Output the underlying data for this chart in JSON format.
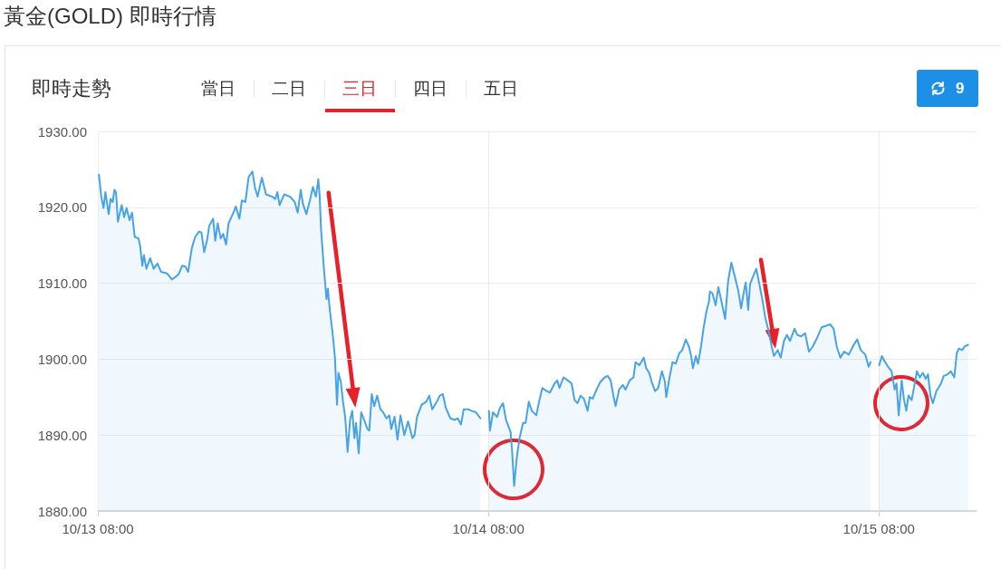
{
  "chart_data": {
    "type": "area",
    "title": "黃金(GOLD) 即時行情",
    "subtitle": "即時走勢",
    "annotations": [
      "當日",
      "二日",
      "三日",
      "四日",
      "五日",
      "9"
    ],
    "color": "#47a3e6",
    "marker": "none",
    "grid": true,
    "xlim": [
      "--10-13T08:00",
      "--10-15T14:00"
    ],
    "xticks": [
      {
        "value": "--10-13T08:00",
        "label": "10/13 08:00"
      },
      {
        "value": "--10-14T08:00",
        "label": "10/14 08:00"
      },
      {
        "value": "--10-15T08:00",
        "label": "10/15 08:00"
      }
    ],
    "ylim": [
      1880,
      1930
    ],
    "yticks": [
      {
        "value": 1880,
        "label": "1880.00"
      },
      {
        "value": 1890,
        "label": "1890.00"
      },
      {
        "value": 1900,
        "label": "1900.00"
      },
      {
        "value": 1910,
        "label": "1910.00"
      },
      {
        "value": 1920,
        "label": "1920.00"
      },
      {
        "value": 1930,
        "label": "1930.00"
      }
    ],
    "x": [
      "--10-13T08:04",
      "--10-13T08:13",
      "--10-13T08:21",
      "--10-13T08:28",
      "--10-13T08:40",
      "--10-13T08:47",
      "--10-13T08:55",
      "--10-13T09:01",
      "--10-13T09:07",
      "--10-13T09:14",
      "--10-13T09:28",
      "--10-13T09:37",
      "--10-13T09:46",
      "--10-13T09:57",
      "--10-13T10:06",
      "--10-13T10:16",
      "--10-13T10:30",
      "--10-13T10:36",
      "--10-13T10:44",
      "--10-13T10:50",
      "--10-13T10:59",
      "--10-13T11:13",
      "--10-13T11:26",
      "--10-13T11:40",
      "--10-13T11:53",
      "--10-13T12:15",
      "--10-13T12:33",
      "--10-13T12:49",
      "--10-13T12:58",
      "--10-13T13:11",
      "--10-13T13:23",
      "--10-13T13:33",
      "--10-13T13:47",
      "--10-13T13:59",
      "--10-13T14:13",
      "--10-13T14:22",
      "--10-13T14:32",
      "--10-13T14:43",
      "--10-13T14:51",
      "--10-13T15:05",
      "--10-13T15:13",
      "--10-13T15:22",
      "--10-13T15:33",
      "--10-13T15:42",
      "--10-13T15:53",
      "--10-13T16:02",
      "--10-13T16:20",
      "--10-13T16:29",
      "--10-13T16:42",
      "--10-13T16:51",
      "--10-13T17:04",
      "--10-13T17:16",
      "--10-13T17:30",
      "--10-13T17:39",
      "--10-13T17:49",
      "--10-13T18:05",
      "--10-13T18:20",
      "--10-13T18:43",
      "--10-13T18:54",
      "--10-13T19:02",
      "--10-13T19:10",
      "--10-13T19:27",
      "--10-13T19:49",
      "--10-13T20:06",
      "--10-13T20:17",
      "--10-13T20:28",
      "--10-13T20:36",
      "--10-13T20:49",
      "--10-13T21:02",
      "--10-13T21:13",
      "--10-13T21:24",
      "--10-13T21:33",
      "--10-13T21:38",
      "--10-13T21:43",
      "--10-13T21:52",
      "--10-13T22:03",
      "--10-13T22:08",
      "--10-13T22:16",
      "--10-13T22:25",
      "--10-13T22:34",
      "--10-13T22:42",
      "--10-13T22:47",
      "--10-13T22:56",
      "--10-13T23:04",
      "--10-13T23:12",
      "--10-13T23:21",
      "--10-13T23:30",
      "--10-13T23:38",
      "--10-13T23:46",
      "--10-13T23:52",
      "--10-14T00:02",
      "--10-14T00:11",
      "--10-14T00:22",
      "--10-14T00:34",
      "--10-14T00:41",
      "--10-14T00:50",
      "--10-14T00:59",
      "--10-14T01:10",
      "--10-14T01:22",
      "--10-14T01:32",
      "--10-14T01:44",
      "--10-14T01:55",
      "--10-14T02:02",
      "--10-14T02:14",
      "--10-14T02:25",
      "--10-14T02:36",
      "--10-14T02:50",
      "--10-14T03:04",
      "--10-14T03:20",
      "--10-14T03:28",
      "--10-14T03:37",
      "--10-14T03:54",
      "--10-14T04:11",
      "--10-14T04:22",
      "--10-14T04:33",
      "--10-14T04:50",
      "--10-14T05:01",
      "--10-14T05:12",
      "--10-14T05:23",
      "--10-14T05:40",
      "--10-14T05:56",
      "--10-14T06:07",
      "--10-14T06:19",
      "--10-14T06:29",
      "--10-14T06:46",
      "--10-14T06:57",
      "--10-14T07:14",
      "--10-14T07:31",
      "--10-14T07:45",
      "--10-14T08:02",
      "--10-14T08:06",
      "--10-14T08:17",
      "--10-14T08:32",
      "--10-14T08:43",
      "--10-14T08:54",
      "--10-14T09:05",
      "--10-14T09:22",
      "--10-14T09:27",
      "--10-14T09:35",
      "--10-14T09:44",
      "--10-14T09:55",
      "--10-14T10:08",
      "--10-14T10:17",
      "--10-14T10:29",
      "--10-14T10:40",
      "--10-14T10:57",
      "--10-14T11:08",
      "--10-14T11:19",
      "--10-14T11:35",
      "--10-14T11:47",
      "--10-14T12:04",
      "--10-14T12:14",
      "--10-14T12:22",
      "--10-14T12:37",
      "--10-14T12:53",
      "--10-14T13:07",
      "--10-14T13:18",
      "--10-14T13:29",
      "--10-14T13:40",
      "--10-14T13:52",
      "--10-14T14:06",
      "--10-14T14:14",
      "--10-14T14:25",
      "--10-14T14:39",
      "--10-14T14:53",
      "--10-14T15:09",
      "--10-14T15:20",
      "--10-14T15:31",
      "--10-14T15:42",
      "--10-14T15:49",
      "--10-14T16:02",
      "--10-14T16:16",
      "--10-14T16:26",
      "--10-14T16:41",
      "--10-14T16:55",
      "--10-14T17:03",
      "--10-14T17:17",
      "--10-14T17:33",
      "--10-14T17:42",
      "--10-14T17:53",
      "--10-14T18:04",
      "--10-14T18:15",
      "--10-14T18:26",
      "--10-14T18:40",
      "--10-14T18:51",
      "--10-14T18:56",
      "--10-14T19:08",
      "--10-14T19:19",
      "--10-14T19:31",
      "--10-14T19:44",
      "--10-14T19:55",
      "--10-14T20:08",
      "--10-14T20:20",
      "--10-14T20:28",
      "--10-14T20:34",
      "--10-14T20:45",
      "--10-14T20:53",
      "--10-14T21:04",
      "--10-14T21:13",
      "--10-14T21:24",
      "--10-14T21:33",
      "--10-14T21:37",
      "--10-14T21:46",
      "--10-14T21:58",
      "--10-14T22:08",
      "--10-14T22:20",
      "--10-14T22:33",
      "--10-14T22:44",
      "--10-14T22:56",
      "--10-14T23:10",
      "--10-14T23:21",
      "--10-14T23:32",
      "--10-14T23:43",
      "--10-14T23:49",
      "--10-14T23:58",
      "--10-15T00:05",
      "--10-15T00:16",
      "--10-15T00:28",
      "--10-15T00:38",
      "--10-15T00:50",
      "--10-15T01:01",
      "--10-15T01:14",
      "--10-15T01:25",
      "--10-15T01:33",
      "--10-15T01:47",
      "--10-15T01:58",
      "--10-15T02:10",
      "--10-15T02:21",
      "--10-15T02:32",
      "--10-15T02:49",
      "--10-15T02:59",
      "--10-15T03:13",
      "--10-15T03:28",
      "--10-15T03:42",
      "--10-15T03:55",
      "--10-15T04:12",
      "--10-15T04:29",
      "--10-15T04:46",
      "--10-15T05:00",
      "--10-15T05:13",
      "--10-15T05:25",
      "--10-15T05:38",
      "--10-15T05:52",
      "--10-15T06:09",
      "--10-15T06:26",
      "--10-15T06:40",
      "--10-15T06:53",
      "--10-15T07:10",
      "--10-15T07:22",
      "--10-15T07:29",
      "--10-15T07:45",
      "--10-15T08:01",
      "--10-15T08:11",
      "--10-15T08:23",
      "--10-15T08:34",
      "--10-15T08:47",
      "--10-15T08:58",
      "--10-15T09:05",
      "--10-15T09:13",
      "--10-15T09:24",
      "--10-15T09:32",
      "--10-15T09:41",
      "--10-15T09:49",
      "--10-15T10:01",
      "--10-15T10:08",
      "--10-15T10:20",
      "--10-15T10:31",
      "--10-15T10:42",
      "--10-15T10:53",
      "--10-15T11:01",
      "--10-15T11:10",
      "--10-15T11:19",
      "--10-15T11:32",
      "--10-15T11:49",
      "--10-15T11:59",
      "--10-15T12:14",
      "--10-15T12:25",
      "--10-15T12:38",
      "--10-15T12:47",
      "--10-15T12:55",
      "--10-15T13:07",
      "--10-15T13:17",
      "--10-15T13:29"
    ],
    "values": [
      1924.3,
      1921.3,
      1919.9,
      1922.0,
      1919.1,
      1921.1,
      1920.7,
      1922.3,
      1922.0,
      1918.1,
      1920.3,
      1918.7,
      1919.9,
      1918.3,
      1919.3,
      1916.1,
      1915.9,
      1914.9,
      1912.3,
      1913.7,
      1911.9,
      1913.3,
      1911.9,
      1912.6,
      1911.5,
      1911.3,
      1910.5,
      1910.9,
      1911.2,
      1912.3,
      1912.2,
      1911.5,
      1914.7,
      1916.1,
      1916.8,
      1916.7,
      1914.1,
      1915.7,
      1917.6,
      1918.5,
      1915.6,
      1917.9,
      1915.9,
      1916.5,
      1915.1,
      1917.9,
      1919.3,
      1920.1,
      1918.5,
      1920.9,
      1920.7,
      1924.0,
      1924.7,
      1922.7,
      1921.4,
      1923.9,
      1921.7,
      1921.4,
      1921.1,
      1922.0,
      1920.3,
      1921.7,
      1921.4,
      1920.7,
      1919.3,
      1922.3,
      1920.5,
      1919.1,
      1920.9,
      1922.7,
      1921.4,
      1923.7,
      1921.5,
      1917.1,
      1912.7,
      1907.9,
      1909.3,
      1906.3,
      1903.6,
      1900.4,
      1894.0,
      1898.2,
      1897.0,
      1894.4,
      1892.4,
      1887.8,
      1892.0,
      1893.2,
      1889.6,
      1891.6,
      1887.6,
      1893.0,
      1892.0,
      1890.8,
      1890.6,
      1895.4,
      1893.8,
      1895.2,
      1893.4,
      1893.0,
      1892.2,
      1892.6,
      1890.8,
      1892.4,
      1889.4,
      1892.6,
      1890.0,
      1891.8,
      1889.6,
      1890.0,
      1892.4,
      1894.0,
      1894.4,
      1895.2,
      1893.4,
      1894.4,
      1895.2,
      1895.4,
      1893.6,
      1892.2,
      1892.0,
      1892.2,
      1891.4,
      1893.4,
      1893.4,
      1893.2,
      1893.0,
      1892.2,
      null,
      1893.2,
      1890.6,
      1893.0,
      1892.4,
      1893.6,
      1894.2,
      1892.0,
      1890.4,
      1888.2,
      1883.3,
      1886.8,
      1889.6,
      1891.6,
      1891.6,
      1894.4,
      1893.2,
      1892.6,
      1894.6,
      1896.2,
      1895.8,
      1895.6,
      1896.8,
      1897.2,
      1896.2,
      1897.6,
      1897.2,
      1896.8,
      1894.6,
      1894.2,
      1895.2,
      1894.8,
      1893.2,
      1895.0,
      1894.8,
      1896.0,
      1897.0,
      1897.6,
      1897.8,
      1897.2,
      1895.0,
      1893.8,
      1896.0,
      1896.6,
      1896.0,
      1897.2,
      1897.6,
      1899.6,
      1899.2,
      1900.2,
      1898.8,
      1898.2,
      1896.8,
      1895.8,
      1896.2,
      1898.4,
      1897.0,
      1895.0,
      1897.6,
      1899.6,
      1899.4,
      1900.8,
      1901.2,
      1902.6,
      1901.6,
      1900.4,
      1898.8,
      1900.4,
      1899.4,
      1901.6,
      1904.0,
      1906.3,
      1907.5,
      1908.9,
      1908.7,
      1907.1,
      1909.5,
      1907.5,
      1905.3,
      1910.3,
      1912.7,
      1910.7,
      1909.1,
      1906.7,
      1909.1,
      1910.1,
      1906.5,
      1909.9,
      1910.9,
      1911.9,
      1910.1,
      1907.9,
      1905.5,
      1903.6,
      1901.6,
      1900.4,
      1901.2,
      1900.2,
      1902.4,
      1903.2,
      1902.4,
      1904.0,
      1903.2,
      1903.0,
      1903.4,
      1901.0,
      1901.6,
      1902.8,
      1904.2,
      1904.4,
      1904.6,
      1904.0,
      1901.6,
      1900.2,
      1901.0,
      1900.6,
      1901.8,
      1902.6,
      1901.2,
      1900.6,
      1899.0,
      1899.6,
      null,
      1899.2,
      1900.4,
      1899.6,
      1899.0,
      1898.4,
      1896.0,
      1896.8,
      1892.6,
      1897.2,
      1894.8,
      1893.2,
      1895.2,
      1894.6,
      1896.0,
      1898.4,
      1897.6,
      1898.2,
      1897.4,
      1898.0,
      1895.2,
      1894.2,
      1895.8,
      1896.8,
      1897.8,
      1898.0,
      1898.4,
      1897.6,
      1900.8,
      1901.4,
      1901.2,
      1901.7,
      1901.9
    ]
  }
}
